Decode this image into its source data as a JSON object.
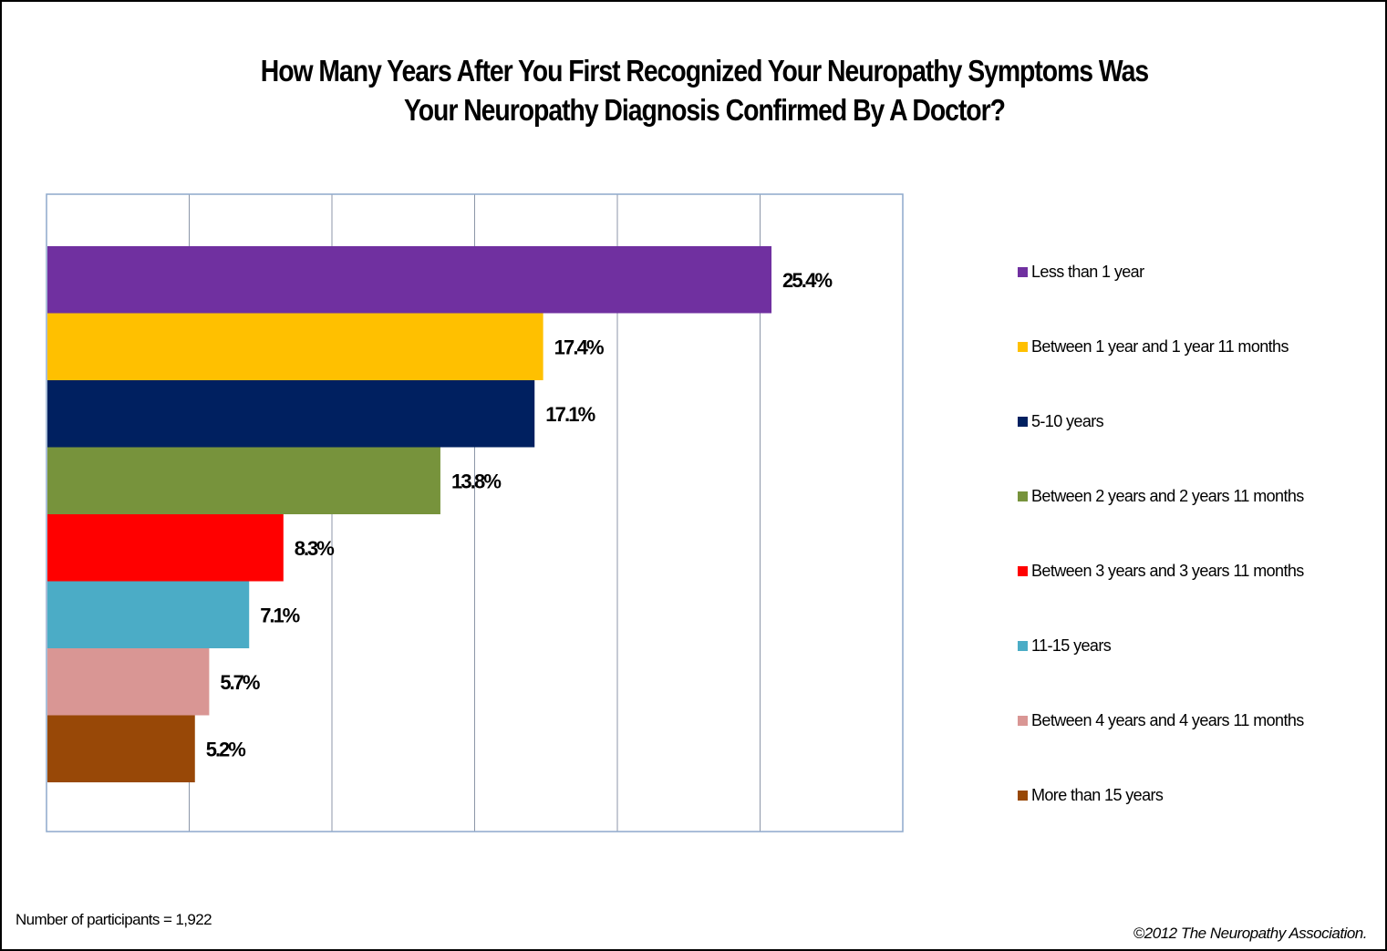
{
  "chart_data": {
    "type": "bar",
    "orientation": "horizontal",
    "title": "How Many Years After You First Recognized Your Neuropathy Symptoms Was Your Neuropathy Diagnosis Confirmed By A Doctor?",
    "title_lines": [
      "How Many Years After You First Recognized Your Neuropathy Symptoms Was",
      "Your Neuropathy Diagnosis Confirmed By A Doctor?"
    ],
    "categories": [
      "Less than 1 year",
      "Between 1 year and 1 year 11 months",
      "5-10 years",
      "Between 2 years and 2 years 11 months",
      "Between 3 years and 3 years 11 months",
      "11-15 years",
      "Between 4 years and 4 years 11 months",
      "More than 15 years"
    ],
    "values": [
      25.4,
      17.4,
      17.1,
      13.8,
      8.3,
      7.1,
      5.7,
      5.2
    ],
    "data_labels": [
      "25.4%",
      "17.4%",
      "17.1%",
      "13.8%",
      "8.3%",
      "7.1%",
      "5.7%",
      "5.2%"
    ],
    "colors": [
      "#7030a0",
      "#ffc000",
      "#002060",
      "#77933c",
      "#ff0000",
      "#4bacc6",
      "#d99694",
      "#984807"
    ],
    "xlabel": "",
    "ylabel": "",
    "xlim": [
      0,
      30
    ],
    "x_gridline_step": 5,
    "x_tick_labels_visible": false,
    "grid": true,
    "legend_position": "right",
    "unit": "%"
  },
  "footnote": "Number of participants = 1,922",
  "copyright": "©2012 The Neuropathy Association."
}
